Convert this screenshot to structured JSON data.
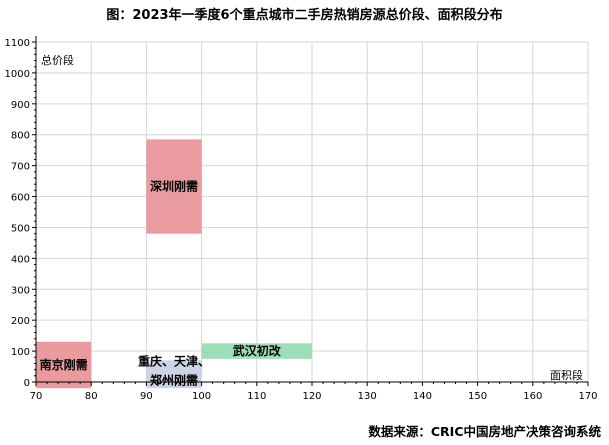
{
  "title": "图：2023年一季度6个重点城市二手房热销房源总价段、面积段分布",
  "source": "数据来源：CRIC中国房地产决策咨询系统",
  "chart_data": {
    "type": "range-rectangles",
    "xlabel": "面积段",
    "ylabel": "总价段",
    "xlim": [
      70,
      170
    ],
    "ylim": [
      0,
      1100
    ],
    "x_ticks": [
      70,
      80,
      90,
      100,
      110,
      120,
      130,
      140,
      150,
      160,
      170
    ],
    "y_ticks": [
      0,
      100,
      200,
      300,
      400,
      500,
      600,
      700,
      800,
      900,
      1000,
      1100
    ],
    "grid": true,
    "regions": [
      {
        "label": "深圳刚需",
        "x": [
          90,
          100
        ],
        "y": [
          480,
          785
        ],
        "color": "#e8969a"
      },
      {
        "label": "南京刚需",
        "x": [
          70,
          80
        ],
        "y": [
          -20,
          130
        ],
        "color": "#e8969a"
      },
      {
        "label": "重庆、天津、",
        "label2": "郑州刚需",
        "x": [
          90,
          100
        ],
        "y": [
          -20,
          70
        ],
        "color": "#c9d3e4"
      },
      {
        "label": "武汉初改",
        "x": [
          100,
          120
        ],
        "y": [
          75,
          125
        ],
        "color": "#98dcb4"
      }
    ]
  }
}
